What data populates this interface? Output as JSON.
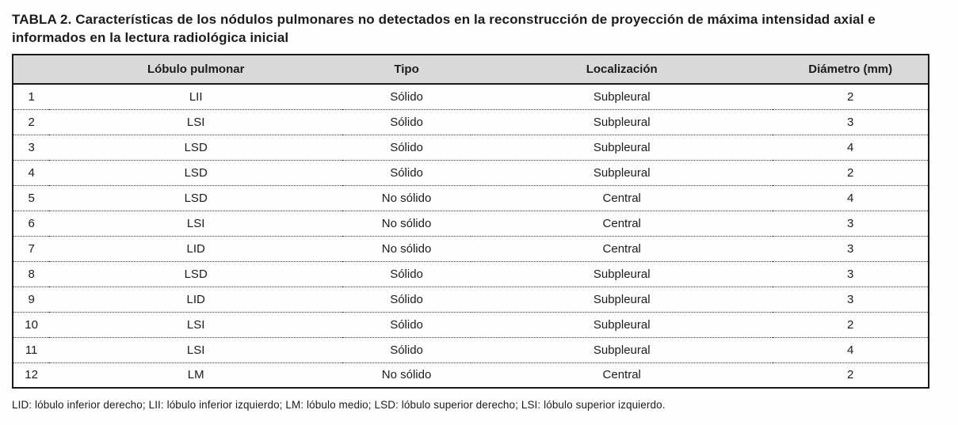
{
  "table": {
    "title": "TABLA 2. Características de los nódulos pulmonares no detectados en la reconstrucción de proyección de máxima intensidad axial e informados en la lectura radiológica inicial",
    "columns": [
      "",
      "Lóbulo pulmonar",
      "Tipo",
      "Localización",
      "Diámetro (mm)"
    ],
    "rows": [
      [
        "1",
        "LII",
        "Sólido",
        "Subpleural",
        "2"
      ],
      [
        "2",
        "LSI",
        "Sólido",
        "Subpleural",
        "3"
      ],
      [
        "3",
        "LSD",
        "Sólido",
        "Subpleural",
        "4"
      ],
      [
        "4",
        "LSD",
        "Sólido",
        "Subpleural",
        "2"
      ],
      [
        "5",
        "LSD",
        "No sólido",
        "Central",
        "4"
      ],
      [
        "6",
        "LSI",
        "No sólido",
        "Central",
        "3"
      ],
      [
        "7",
        "LID",
        "No sólido",
        "Central",
        "3"
      ],
      [
        "8",
        "LSD",
        "Sólido",
        "Subpleural",
        "3"
      ],
      [
        "9",
        "LID",
        "Sólido",
        "Subpleural",
        "3"
      ],
      [
        "10",
        "LSI",
        "Sólido",
        "Subpleural",
        "2"
      ],
      [
        "11",
        "LSI",
        "Sólido",
        "Subpleural",
        "4"
      ],
      [
        "12",
        "LM",
        "No sólido",
        "Central",
        "2"
      ]
    ],
    "footnote": "LID: lóbulo inferior derecho; LII: lóbulo inferior izquierdo; LM: lóbulo medio; LSD: lóbulo superior derecho; LSI: lóbulo superior izquierdo."
  },
  "colors": {
    "header_bg": "#d9d9d9",
    "border": "#1a1a1a",
    "text": "#1c1c1c"
  }
}
